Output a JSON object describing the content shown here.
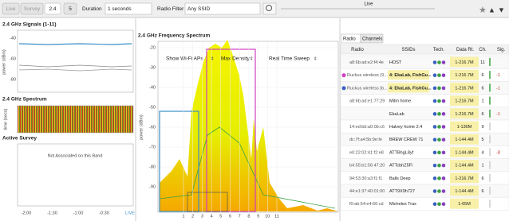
{
  "toolbar": {
    "buttons": [
      "Live",
      "Survey",
      "2.4",
      "5"
    ],
    "duration_label": "Duration",
    "duration": "1 seconds",
    "radio_filter_label": "Radio Filter",
    "radio_filter": "Any SSID",
    "timeline": "Live"
  },
  "left": {
    "signals_title": "2.4 GHz Signals (1-11)",
    "signals_yticks": [
      "-40",
      "-60",
      "-80"
    ],
    "signals_ylabel": "power (dBm)",
    "spectrum_title": "2.4 GHz Spectrum",
    "spectrum_ylabel": "time (secs)",
    "survey_title": "Active Survey",
    "survey_message": "Not Associated on this Band",
    "time_ticks": [
      "-2:00",
      "-1:30",
      "-1:00",
      "-0:30",
      "LIVE"
    ]
  },
  "spectrum": {
    "title": "2.4 GHz Frequency Spectrum",
    "controls": [
      "Show Wi-Fi APs",
      "Max Density",
      "Real Time Sweep"
    ],
    "ylabel": "power (dBm)",
    "yticks": [
      "-20",
      "-30",
      "-40",
      "-50",
      "-60",
      "-70",
      "-80",
      "-90"
    ],
    "channels": [
      "1",
      "2",
      "3",
      "4",
      "5",
      "6",
      "7",
      "8",
      "9",
      "10",
      "11"
    ]
  },
  "table": {
    "tabs": [
      "Radio",
      "Channels"
    ],
    "headers": [
      "Radio",
      "SSIDs",
      "Tech.",
      "Data Rt.",
      "Ch.",
      "Sig."
    ],
    "rows": [
      {
        "radio": "a8:6b:ad:e2:f4:4e",
        "ssid": "HOST",
        "rate": "1-216.7M",
        "ch": "11"
      },
      {
        "radio": "Ruckus wireless (9...",
        "ssid": "4: EkaLab, FishGu...",
        "rate": "1-216.7M",
        "ch": "6",
        "sig": "-1"
      },
      {
        "radio": "Ruckus wireless (b...",
        "ssid": "4: EkaLab, FishGu...",
        "rate": "1-216.7M",
        "ch": "6",
        "sig": "-1"
      },
      {
        "radio": "a8:6b:ad:e1:77:29",
        "ssid": "Mitm home",
        "rate": "1-216.7M",
        "ch": "1"
      },
      {
        "ssid": "EkaLab",
        "rate": "1-216.7M",
        "ch": "6",
        "sig": "-1"
      },
      {
        "radio": "14:ed:bb:a0:0b:c6",
        "ssid": "Halvey home 2.4",
        "rate": "1-130M",
        "ch": "9"
      },
      {
        "radio": "dc:7f:a4:5b:9e:fe",
        "ssid": "BREW CREW 71",
        "rate": "1-144.4M",
        "ch": "5"
      },
      {
        "radio": "e0:22:02:41:f2:e8",
        "ssid": "ATTBhgL8yf",
        "rate": "1-144.4M",
        "ch": "4",
        "sig": "-8"
      },
      {
        "radio": "b4:55:b1:56:47:20",
        "ssid": "ATTcbhZ5Fi",
        "rate": "1-144.4M",
        "ch": "1"
      },
      {
        "radio": "94:53:30:a3:f1:f1",
        "ssid": "Balls Deep",
        "rate": "1-216.7M",
        "ch": "6"
      },
      {
        "radio": "44:e1:37:40:01:00",
        "ssid": "ATT9X9h727",
        "rate": "1-144.4M",
        "ch": "6"
      },
      {
        "radio": "f0:ab:54:e4:66:cd",
        "ssid": "Micheles Trax",
        "rate": "1-65M"
      }
    ]
  }
}
